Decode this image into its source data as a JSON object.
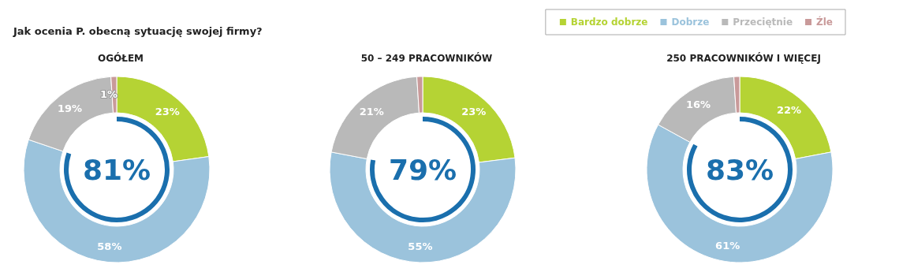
{
  "chart_data": {
    "type": "donut",
    "title": "Jak ocenia P. obecną sytuację swojej firmy?",
    "categories": [
      "Bardzo dobrze",
      "Dobrze",
      "Przeciętnie",
      "Źle"
    ],
    "colors": [
      "#b5d334",
      "#9bc3dc",
      "#b9b9b9",
      "#c99a9a"
    ],
    "legend": "top right",
    "series": [
      {
        "name": "OGÓŁEM",
        "values": [
          23,
          58,
          19,
          1
        ],
        "value_labels": [
          "23%",
          "58%",
          "19%",
          "1%"
        ]
      },
      {
        "name": "50 – 249 PRACOWNIKÓW",
        "values": [
          23,
          55,
          21,
          1
        ],
        "value_labels": [
          "23%",
          "55%",
          "21%",
          null
        ]
      },
      {
        "name": "250 PRACOWNIKÓW I WIĘCEJ",
        "values": [
          22,
          61,
          16,
          1
        ],
        "value_labels": [
          "22%",
          "61%",
          "16%",
          null
        ]
      }
    ],
    "annotations": [
      "81%",
      "79%",
      "83%"
    ]
  }
}
